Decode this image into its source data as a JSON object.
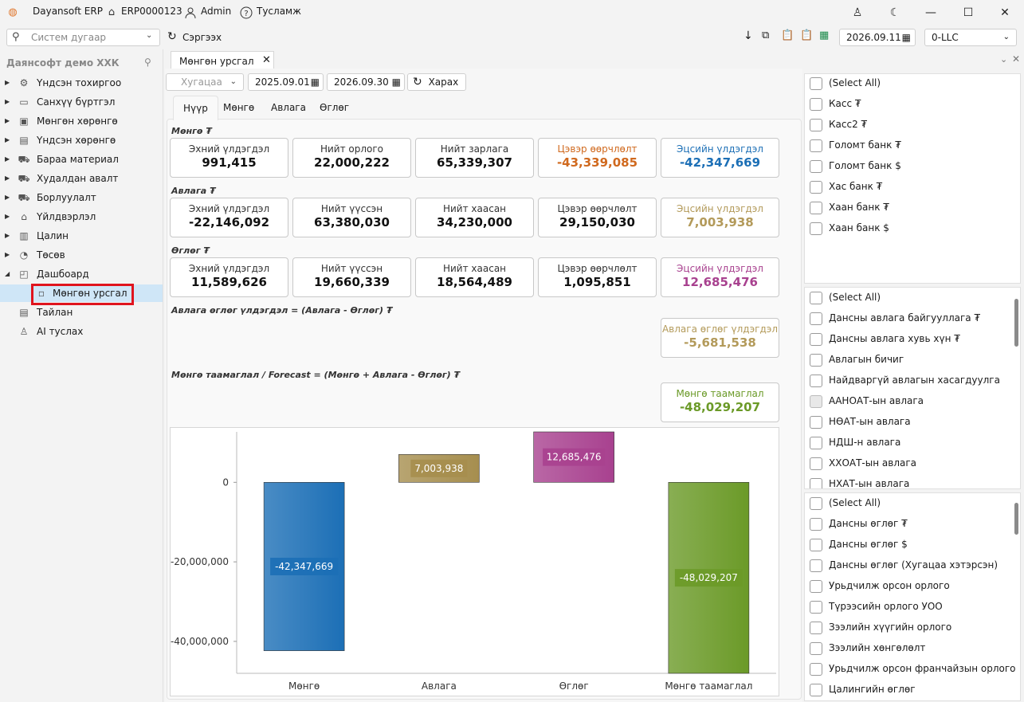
{
  "titlebar": {
    "app": "Dayansoft ERP",
    "code": "ERP0000123",
    "user": "Admin",
    "help": "Тусламж"
  },
  "toolbar": {
    "search_placeholder": "Систем дугаар",
    "refresh": "Сэргээх",
    "date": "2026.09.11",
    "company": "0-LLC"
  },
  "sidebar": {
    "company": "Даянсофт демо ХХК",
    "items": [
      {
        "label": "Үндсэн тохиргоо",
        "icon": "gear-icon"
      },
      {
        "label": "Санхүү бүртгэл",
        "icon": "ledger-icon"
      },
      {
        "label": "Мөнгөн хөрөнгө",
        "icon": "cash-icon"
      },
      {
        "label": "Үндсэн хөрөнгө",
        "icon": "asset-icon"
      },
      {
        "label": "Бараа материал",
        "icon": "cart-icon"
      },
      {
        "label": "Худалдан авалт",
        "icon": "basket-icon"
      },
      {
        "label": "Борлуулалт",
        "icon": "sales-cart-icon"
      },
      {
        "label": "Үйлдвэрлэл",
        "icon": "factory-icon"
      },
      {
        "label": "Цалин",
        "icon": "payroll-icon"
      },
      {
        "label": "Төсөв",
        "icon": "pie-icon"
      },
      {
        "label": "Дашбоард",
        "icon": "dashboard-icon"
      },
      {
        "label": "Мөнгөн урсгал",
        "icon": "page-icon",
        "selected": true
      },
      {
        "label": "Тайлан",
        "icon": "report-icon"
      },
      {
        "label": "AI туслах",
        "icon": "ai-icon"
      }
    ]
  },
  "doc_tab": "Мөнгөн урсгал",
  "filter": {
    "period": "Хугацаа",
    "from": "2025.09.01",
    "to": "2026.09.30",
    "view": "Харах"
  },
  "tabs": [
    "Нүүр",
    "Мөнгө",
    "Авлага",
    "Өглөг"
  ],
  "sections": {
    "money": "Мөнгө ₮",
    "receivable": "Авлага ₮",
    "payable": "Өглөг ₮",
    "net": "Авлага өглөг үлдэгдэл = (Авлага - Өглөг) ₮",
    "forecast": "Мөнгө таамаглал / Forecast = (Мөнгө + Авлага - Өглөг) ₮"
  },
  "cards": {
    "money": [
      {
        "label": "Эхний үлдэгдэл",
        "value": "991,415"
      },
      {
        "label": "Нийт орлого",
        "value": "22,000,222"
      },
      {
        "label": "Нийт зарлага",
        "value": "65,339,307"
      },
      {
        "label": "Цэвэр өөрчлөлт",
        "value": "-43,339,085"
      },
      {
        "label": "Эцсийн үлдэгдэл",
        "value": "-42,347,669"
      }
    ],
    "receivable": [
      {
        "label": "Эхний үлдэгдэл",
        "value": "-22,146,092"
      },
      {
        "label": "Нийт үүссэн",
        "value": "63,380,030"
      },
      {
        "label": "Нийт хаасан",
        "value": "34,230,000"
      },
      {
        "label": "Цэвэр өөрчлөлт",
        "value": "29,150,030"
      },
      {
        "label": "Эцсийн үлдэгдэл",
        "value": "7,003,938"
      }
    ],
    "payable": [
      {
        "label": "Эхний үлдэгдэл",
        "value": "11,589,626"
      },
      {
        "label": "Нийт үүссэн",
        "value": "19,660,339"
      },
      {
        "label": "Нийт хаасан",
        "value": "18,564,489"
      },
      {
        "label": "Цэвэр өөрчлөлт",
        "value": "1,095,851"
      },
      {
        "label": "Эцсийн үлдэгдэл",
        "value": "12,685,476"
      }
    ],
    "net": {
      "label": "Авлага өглөг үлдэгдэл",
      "value": "-5,681,538"
    },
    "forecast": {
      "label": "Мөнгө таамаглал",
      "value": "-48,029,207"
    }
  },
  "colors": {
    "orange": "#d0691e",
    "blue": "#1c6fb6",
    "tan": "#b39a5a",
    "purple": "#a8418f",
    "green": "#6b9a28"
  },
  "chart_data": {
    "type": "bar",
    "categories": [
      "Мөнгө",
      "Авлага",
      "Өглөг",
      "Мөнгө таамаглал"
    ],
    "values": [
      -42347669,
      7003938,
      12685476,
      -48029207
    ],
    "value_labels": [
      "-42,347,669",
      "7,003,938",
      "12,685,476",
      "-48,029,207"
    ],
    "colors": [
      "#1c6fb6",
      "#a68e4e",
      "#a8418f",
      "#6b9a28"
    ],
    "yticks": [
      "0",
      "-20,000,000",
      "-40,000,000"
    ],
    "ytick_values": [
      0,
      -20000000,
      -40000000
    ],
    "ylim": [
      -48029207,
      12685476
    ]
  },
  "lists": {
    "cash": [
      "(Select All)",
      "Касс ₮",
      "Касс2 ₮",
      "Голомт банк ₮",
      "Голомт банк $",
      "Хас банк ₮",
      "Хаан банк ₮",
      "Хаан банк $"
    ],
    "receivable": [
      "(Select All)",
      "Дансны авлага байгууллага ₮",
      "Дансны авлага хувь хүн ₮",
      "Авлагын бичиг",
      "Найдваргүй авлагын хасагдуулга",
      "ААНОАТ-ын авлага",
      "НӨАТ-ын авлага",
      "НДШ-н авлага",
      "ХХОАТ-ын авлага",
      "НХАТ-ын авлага"
    ],
    "payable": [
      "(Select All)",
      "Дансны өглөг ₮",
      "Дансны өглөг $",
      "Дансны өглөг (Хугацаа хэтэрсэн)",
      "Урьдчилж орсон орлого",
      "Түрээсийн орлого УОО",
      "Зээлийн хүүгийн орлого",
      "Зээлийн хөнгөлөлт",
      "Урьдчилж орсон франчайзын орлого",
      "Цалингийн өглөг"
    ]
  }
}
